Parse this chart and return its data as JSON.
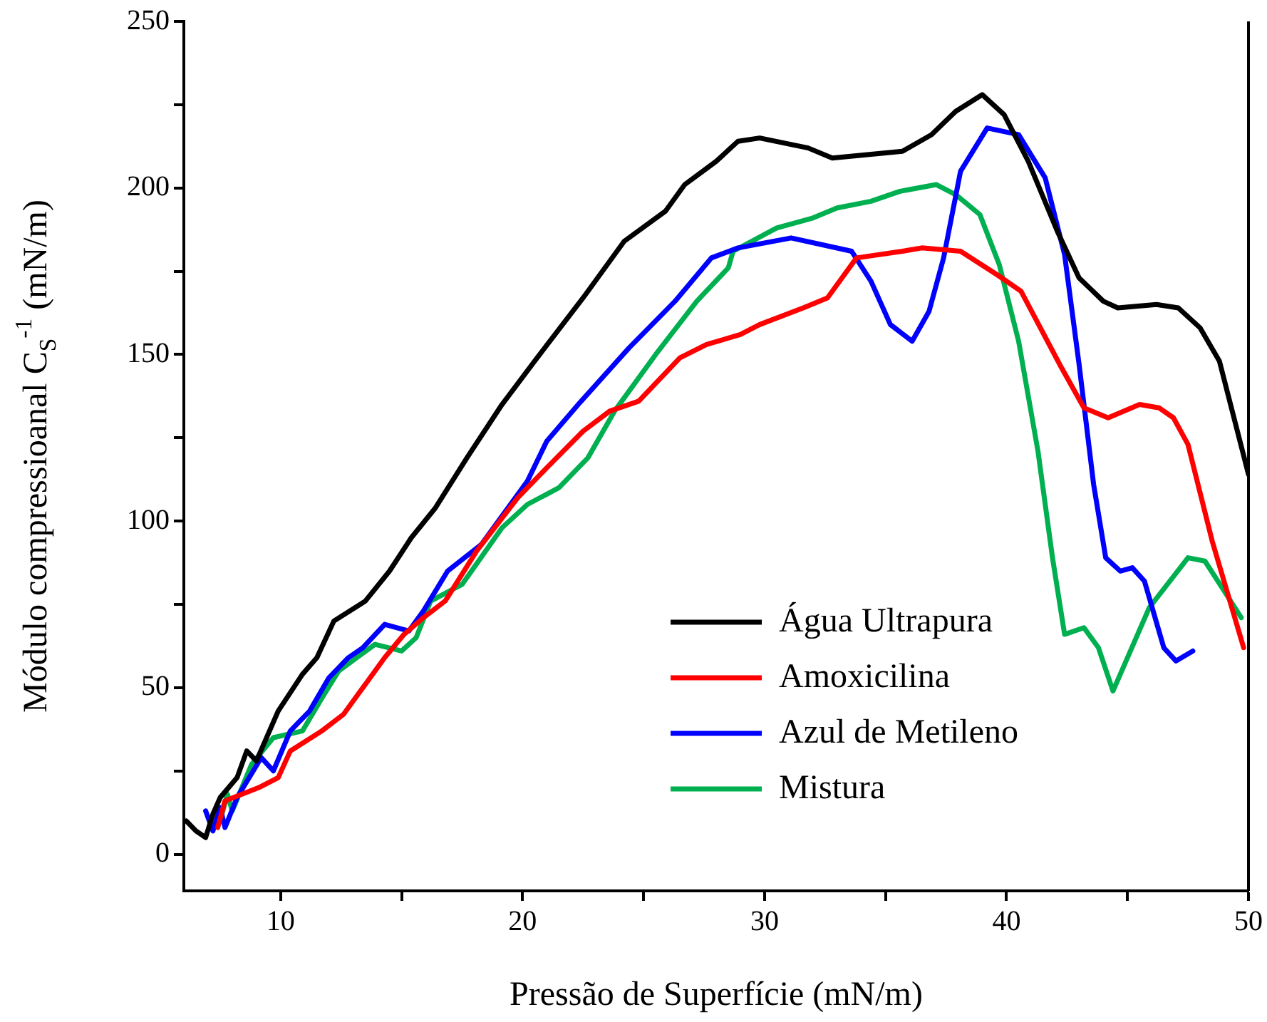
{
  "chart_data": {
    "type": "line",
    "xlabel": "Pressão de Superfície (mN/m)",
    "ylabel": "Módulo compressioanal C$_{S}$$^{-1}$ (mN/m)",
    "xlim": [
      6,
      50
    ],
    "xticks": [
      10,
      {
        "value": 15,
        "label": null
      },
      20,
      {
        "value": 25,
        "label": null
      },
      30,
      {
        "value": 35,
        "label": null
      },
      40,
      {
        "value": 45,
        "label": null
      },
      50
    ],
    "ylim": [
      -11,
      250
    ],
    "yticks": [
      0,
      {
        "value": 25,
        "label": null
      },
      50,
      {
        "value": 75,
        "label": null
      },
      100,
      {
        "value": 125,
        "label": null
      },
      150,
      {
        "value": 175,
        "label": null
      },
      200,
      {
        "value": 225,
        "label": null
      },
      250
    ],
    "grid": false,
    "legend": "bottom",
    "marker": "none",
    "line_style": "solid",
    "series": [
      {
        "name": "Água Ultrapura",
        "color": "#000000",
        "x": [
          6.1,
          6.5,
          6.9,
          7.2,
          7.5,
          8.2,
          8.6,
          9.0,
          9.9,
          10.9,
          11.5,
          12.2,
          13.5,
          14.5,
          15.4,
          16.4,
          17.7,
          19.15,
          20.6,
          22.5,
          24.2,
          25.9,
          26.7,
          28.0,
          28.9,
          29.8,
          31.8,
          32.8,
          35.7,
          36.9,
          37.9,
          39.0,
          39.9,
          40.9,
          42.1,
          43.0,
          44.0,
          44.6,
          46.2,
          47.1,
          48.0,
          48.8,
          50.0
        ],
        "values": [
          10,
          7,
          5,
          12,
          17,
          23,
          31,
          28,
          43,
          54,
          59,
          70,
          76,
          85,
          95,
          104,
          119,
          135,
          149,
          167,
          184,
          193,
          201,
          208,
          214,
          215,
          212,
          209,
          211,
          216,
          223,
          228,
          222,
          208,
          187,
          173,
          166,
          164,
          165,
          164,
          158,
          148,
          114
        ]
      },
      {
        "name": "Amoxicilina",
        "color": "#ff0000",
        "x": [
          7.4,
          7.7,
          9.1,
          9.9,
          10.4,
          11.7,
          12.6,
          13.4,
          14.3,
          15.1,
          15.9,
          16.8,
          18.1,
          19.8,
          21.0,
          22.5,
          23.6,
          24.8,
          26.5,
          27.6,
          29.0,
          29.8,
          31.6,
          32.6,
          33.8,
          35.7,
          36.5,
          38.1,
          39.6,
          40.6,
          42.2,
          43.2,
          44.2,
          45.5,
          46.3,
          46.9,
          47.5,
          48.5,
          49.8
        ],
        "values": [
          8,
          16,
          20,
          23,
          31,
          37,
          42,
          50,
          59,
          66,
          71,
          76,
          91,
          107,
          116,
          127,
          133,
          136,
          149,
          153,
          156,
          159,
          164,
          167,
          179,
          181,
          182,
          181,
          174,
          169,
          147,
          134,
          131,
          135,
          134,
          131,
          123,
          94,
          62
        ]
      },
      {
        "name": "Azul de Metileno",
        "color": "#0000ff",
        "x": [
          6.9,
          7.2,
          7.5,
          7.7,
          8.2,
          9.2,
          9.7,
          10.4,
          11.2,
          12.0,
          12.8,
          13.4,
          14.3,
          15.3,
          15.9,
          16.9,
          18.3,
          20.2,
          21.0,
          22.3,
          24.4,
          26.3,
          27.8,
          28.9,
          31.1,
          33.6,
          34.4,
          35.2,
          36.1,
          36.8,
          37.4,
          38.1,
          39.2,
          40.5,
          41.6,
          42.4,
          43.0,
          43.6,
          44.1,
          44.7,
          45.2,
          45.7,
          46.5,
          47.0,
          47.7
        ],
        "values": [
          13,
          7,
          14,
          8,
          17,
          29,
          25,
          37,
          43,
          53,
          59,
          62,
          69,
          67,
          73,
          85,
          93,
          112,
          124,
          135,
          152,
          166,
          179,
          182,
          185,
          181,
          172,
          159,
          154,
          163,
          179,
          205,
          218,
          216,
          203,
          180,
          147,
          111,
          89,
          85,
          86,
          82,
          62,
          58,
          61
        ]
      },
      {
        "name": "Mistura",
        "color": "#00b050",
        "x": [
          7.5,
          7.8,
          8.0,
          8.8,
          9.7,
          10.9,
          11.8,
          12.4,
          13.9,
          15.0,
          15.6,
          16.2,
          17.5,
          19.15,
          20.2,
          21.5,
          22.7,
          23.8,
          25.5,
          27.2,
          28.5,
          28.7,
          30.5,
          32.0,
          33.0,
          34.4,
          35.6,
          37.1,
          37.9,
          38.9,
          39.7,
          40.5,
          41.3,
          41.9,
          42.4,
          43.2,
          43.8,
          44.4,
          45.9,
          47.5,
          48.2,
          49.0,
          49.7
        ],
        "values": [
          10,
          18,
          13,
          27,
          35,
          37,
          48,
          55,
          63,
          61,
          65,
          76,
          81,
          98,
          105,
          110,
          119,
          133,
          150,
          166,
          176,
          181,
          188,
          191,
          194,
          196,
          199,
          201,
          198,
          192,
          177,
          154,
          121,
          89,
          66,
          68,
          62,
          49,
          74,
          89,
          88,
          79,
          71
        ]
      }
    ]
  }
}
